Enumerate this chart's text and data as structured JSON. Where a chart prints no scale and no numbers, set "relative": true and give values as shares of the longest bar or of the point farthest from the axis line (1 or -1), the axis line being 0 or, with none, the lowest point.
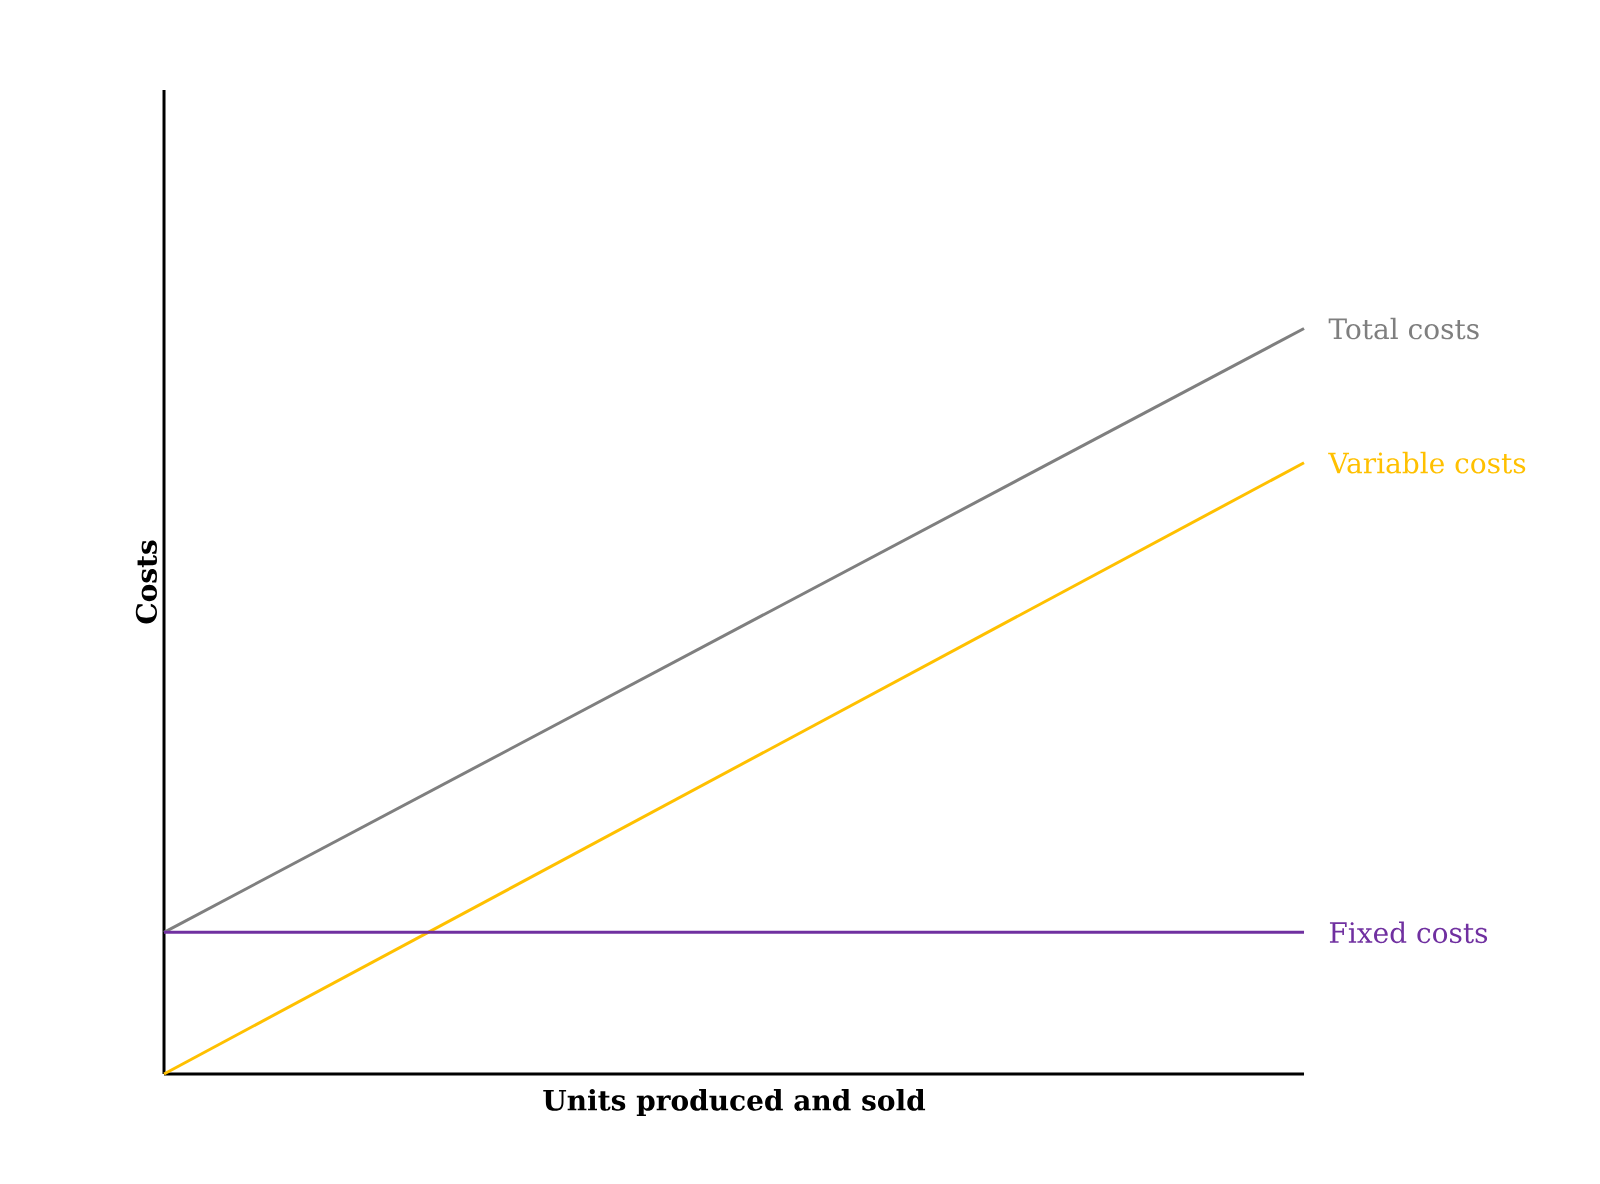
{
  "chart_data": {
    "type": "line",
    "relative": true,
    "xlabel": "Units produced and sold",
    "ylabel": "Costs",
    "categories": [
      null,
      null
    ],
    "series": [
      {
        "name": "Total costs",
        "color": "#7f7f7f",
        "values": [
          0.19,
          1
        ]
      },
      {
        "name": "Variable costs",
        "color": "#ffc000",
        "values": [
          0,
          0.82
        ]
      },
      {
        "name": "Fixed costs",
        "color": "#7030a0",
        "values": [
          0.19,
          0.19
        ]
      }
    ]
  }
}
